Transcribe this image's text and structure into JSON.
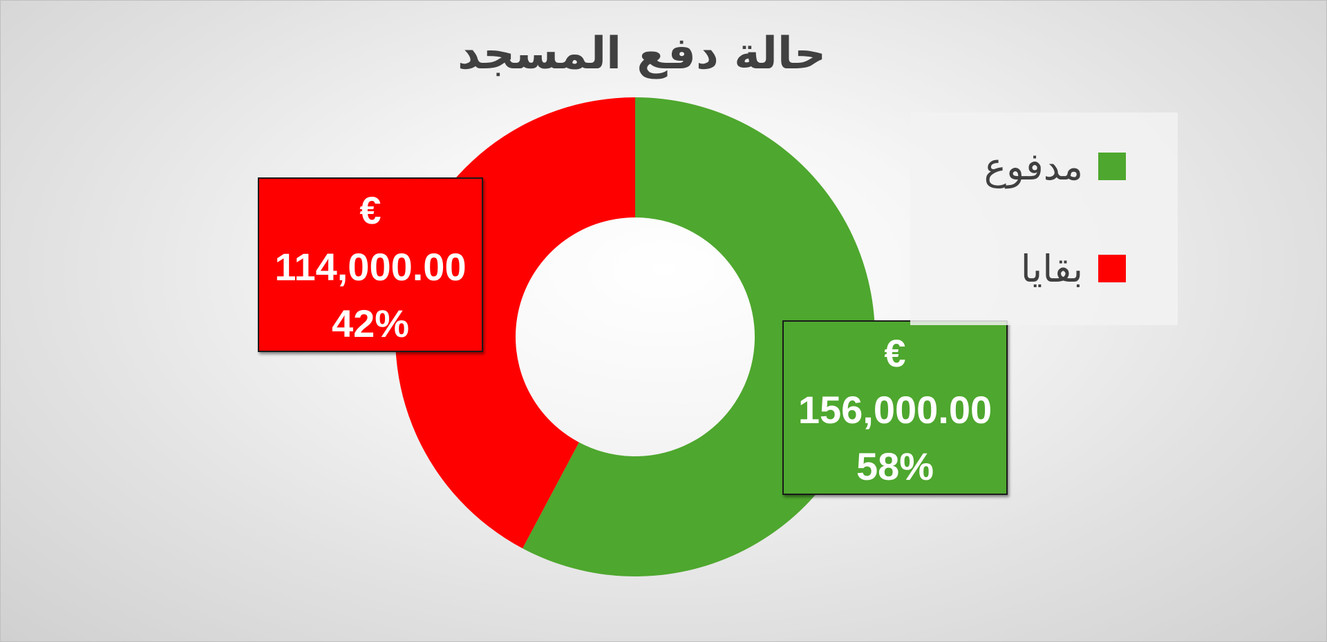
{
  "chart_data": {
    "type": "pie",
    "variant": "donut",
    "title": "حالة دفع المسجد",
    "categories": [
      "مدفوع",
      "بقايا"
    ],
    "values": [
      156000,
      114000
    ],
    "percentages": [
      "58%",
      "42%"
    ],
    "value_labels": [
      "156,000.00",
      "114,000.00"
    ],
    "currency_symbol": "€",
    "colors": [
      "#4ea72e",
      "#ff0000"
    ],
    "legend_position": "right",
    "start_angle_deg": 0,
    "direction": "clockwise"
  }
}
